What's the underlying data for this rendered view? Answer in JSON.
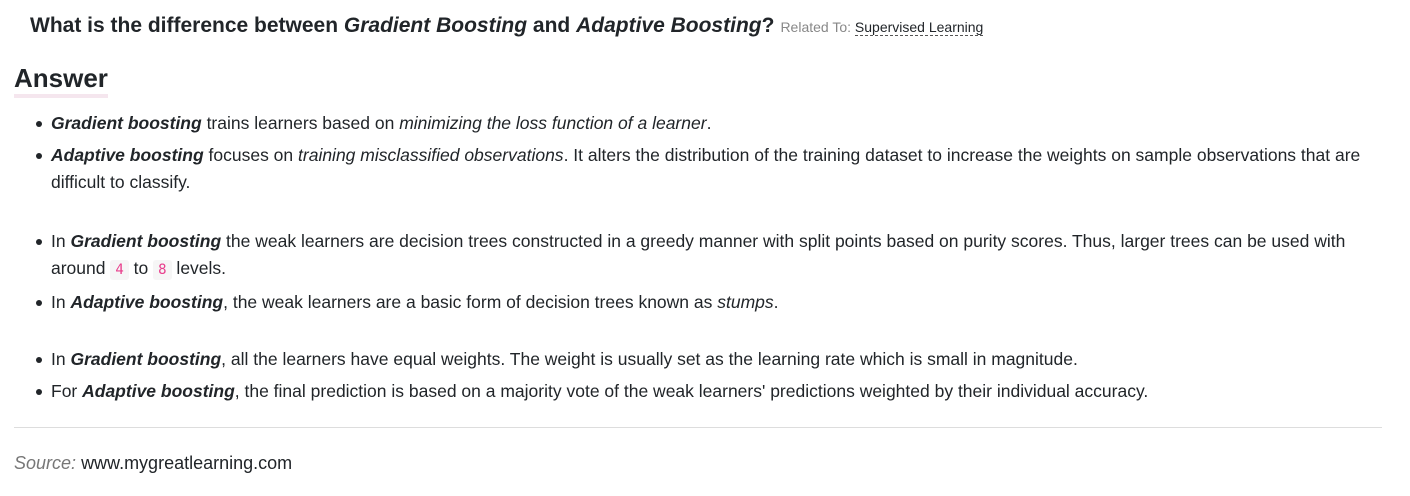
{
  "question": {
    "p1": "What is the difference between ",
    "term1": "Gradient Boosting",
    "p2": " and ",
    "term2": "Adaptive Boosting",
    "p3": "?",
    "related_label": "Related To: ",
    "related_link": "Supervised Learning"
  },
  "answer_heading": "Answer",
  "group1": {
    "item1": {
      "term": "Gradient boosting",
      "t1": " trains learners based on ",
      "em": "minimizing the loss function of a learner",
      "t2": "."
    },
    "item2": {
      "term": "Adaptive boosting",
      "t1": " focuses on ",
      "em": "training misclassified observations",
      "t2": ". It alters the distribution of the training dataset to increase the weights on sample observations that are difficult to classify."
    }
  },
  "group2": {
    "item1": {
      "pre": "In ",
      "term": "Gradient boosting",
      "t1": " the weak learners are decision trees constructed in a greedy manner with split points based on purity scores. Thus, larger trees can be used with around ",
      "num1": "4",
      "t2": " to ",
      "num2": "8",
      "t3": " levels."
    },
    "item2": {
      "pre": "In ",
      "term": "Adaptive boosting",
      "t1": ", the weak learners are a basic form of decision trees known as ",
      "em": "stumps",
      "t2": "."
    }
  },
  "group3": {
    "item1": {
      "pre": "In ",
      "term": "Gradient boosting",
      "t1": ", all the learners have equal weights. The weight is usually set as the learning rate which is small in magnitude."
    },
    "item2": {
      "pre": "For ",
      "term": "Adaptive boosting",
      "t1": ", the final prediction is based on a majority vote of the weak learners' predictions weighted by their individual accuracy."
    }
  },
  "source": {
    "label": "Source:",
    "url": "www.mygreatlearning.com"
  },
  "colors": {
    "text": "#212529",
    "muted": "#888888",
    "code_text": "#e83e8c",
    "code_bg": "#f6f6f6",
    "heading_underline": "#f5e6ee"
  }
}
